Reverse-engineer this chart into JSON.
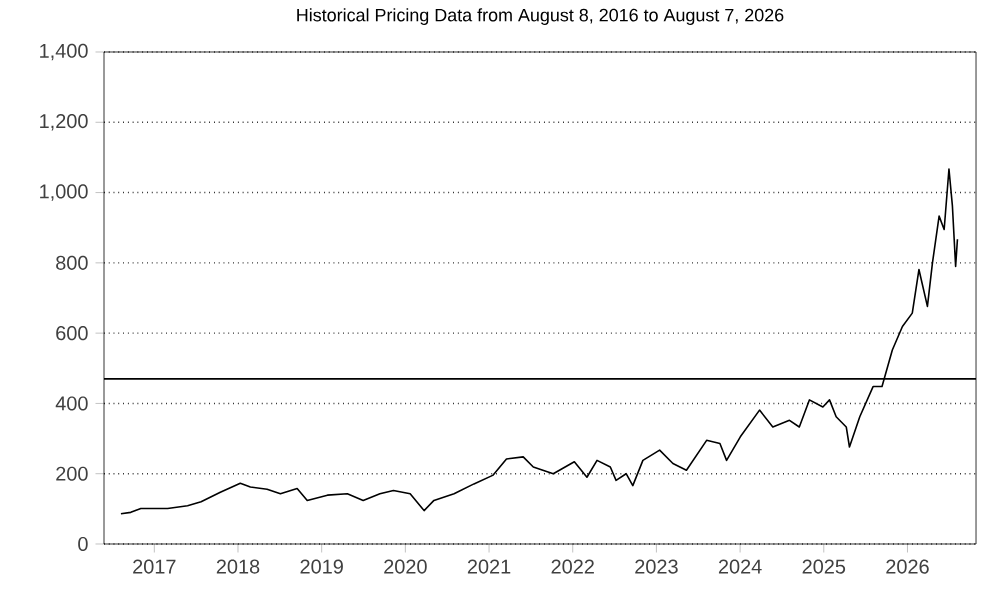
{
  "chart_data": {
    "type": "line",
    "title": "Historical Pricing Data from August 8, 2016 to August 7, 2026",
    "x": [
      "2016-08-08",
      "2016-09-20",
      "2016-11-03",
      "2017-02-28",
      "2017-05-26",
      "2017-07-24",
      "2017-10-16",
      "2018-01-11",
      "2018-02-24",
      "2018-05-08",
      "2018-07-05",
      "2018-09-16",
      "2018-10-30",
      "2019-01-26",
      "2019-04-23",
      "2019-07-01",
      "2019-09-12",
      "2019-11-10",
      "2020-01-22",
      "2020-03-23",
      "2020-05-05",
      "2020-08-01",
      "2020-10-27",
      "2021-01-19",
      "2021-03-18",
      "2021-05-30",
      "2021-07-13",
      "2021-10-08",
      "2022-01-08",
      "2022-03-04",
      "2022-04-17",
      "2022-06-14",
      "2022-07-09",
      "2022-08-22",
      "2022-09-20",
      "2022-11-03",
      "2023-01-15",
      "2023-03-14",
      "2023-05-12",
      "2023-08-08",
      "2023-10-05",
      "2023-11-03",
      "2024-01-02",
      "2024-03-26",
      "2024-05-23",
      "2024-08-04",
      "2024-09-16",
      "2024-10-30",
      "2024-12-28",
      "2025-01-26",
      "2025-02-24",
      "2025-04-09",
      "2025-04-23",
      "2025-06-07",
      "2025-08-04",
      "2025-09-12",
      "2025-10-27",
      "2025-12-10",
      "2026-01-22",
      "2026-02-20",
      "2026-03-29",
      "2026-04-20",
      "2026-05-19",
      "2026-06-10",
      "2026-07-01",
      "2026-07-16",
      "2026-07-30",
      "2026-08-07"
    ],
    "values": [
      86,
      90,
      101,
      101,
      109,
      120,
      147,
      173,
      162,
      156,
      143,
      158,
      124,
      139,
      143,
      124,
      143,
      152,
      143,
      95,
      124,
      143,
      171,
      196,
      242,
      248,
      219,
      200,
      234,
      190,
      238,
      219,
      181,
      200,
      166,
      238,
      267,
      229,
      210,
      295,
      286,
      238,
      305,
      381,
      333,
      352,
      333,
      410,
      390,
      410,
      362,
      333,
      276,
      362,
      448,
      448,
      552,
      619,
      657,
      781,
      676,
      800,
      933,
      895,
      1067,
      962,
      790,
      867
    ],
    "color": "#000000",
    "xlim": [
      "2016-05-26",
      "2026-10-27"
    ],
    "xticks": [
      {
        "value": "2017-01-01",
        "label": "2017"
      },
      {
        "value": "2018-01-01",
        "label": "2018"
      },
      {
        "value": "2019-01-01",
        "label": "2019"
      },
      {
        "value": "2020-01-01",
        "label": "2020"
      },
      {
        "value": "2021-01-01",
        "label": "2021"
      },
      {
        "value": "2022-01-01",
        "label": "2022"
      },
      {
        "value": "2023-01-01",
        "label": "2023"
      },
      {
        "value": "2024-01-01",
        "label": "2024"
      },
      {
        "value": "2025-01-01",
        "label": "2025"
      },
      {
        "value": "2026-01-01",
        "label": "2026"
      }
    ],
    "ylim": [
      0,
      1400
    ],
    "yticks": [
      0,
      200,
      400,
      600,
      800,
      {
        "value": 1000,
        "label": "1,000"
      },
      {
        "value": 1200,
        "label": "1,200"
      },
      {
        "value": 1400,
        "label": "1,400"
      }
    ],
    "grid": "y",
    "marker": "none",
    "line_style": "solid",
    "ref_lines": [
      {
        "axis": "y",
        "value": 470,
        "color": "#000000"
      }
    ]
  }
}
